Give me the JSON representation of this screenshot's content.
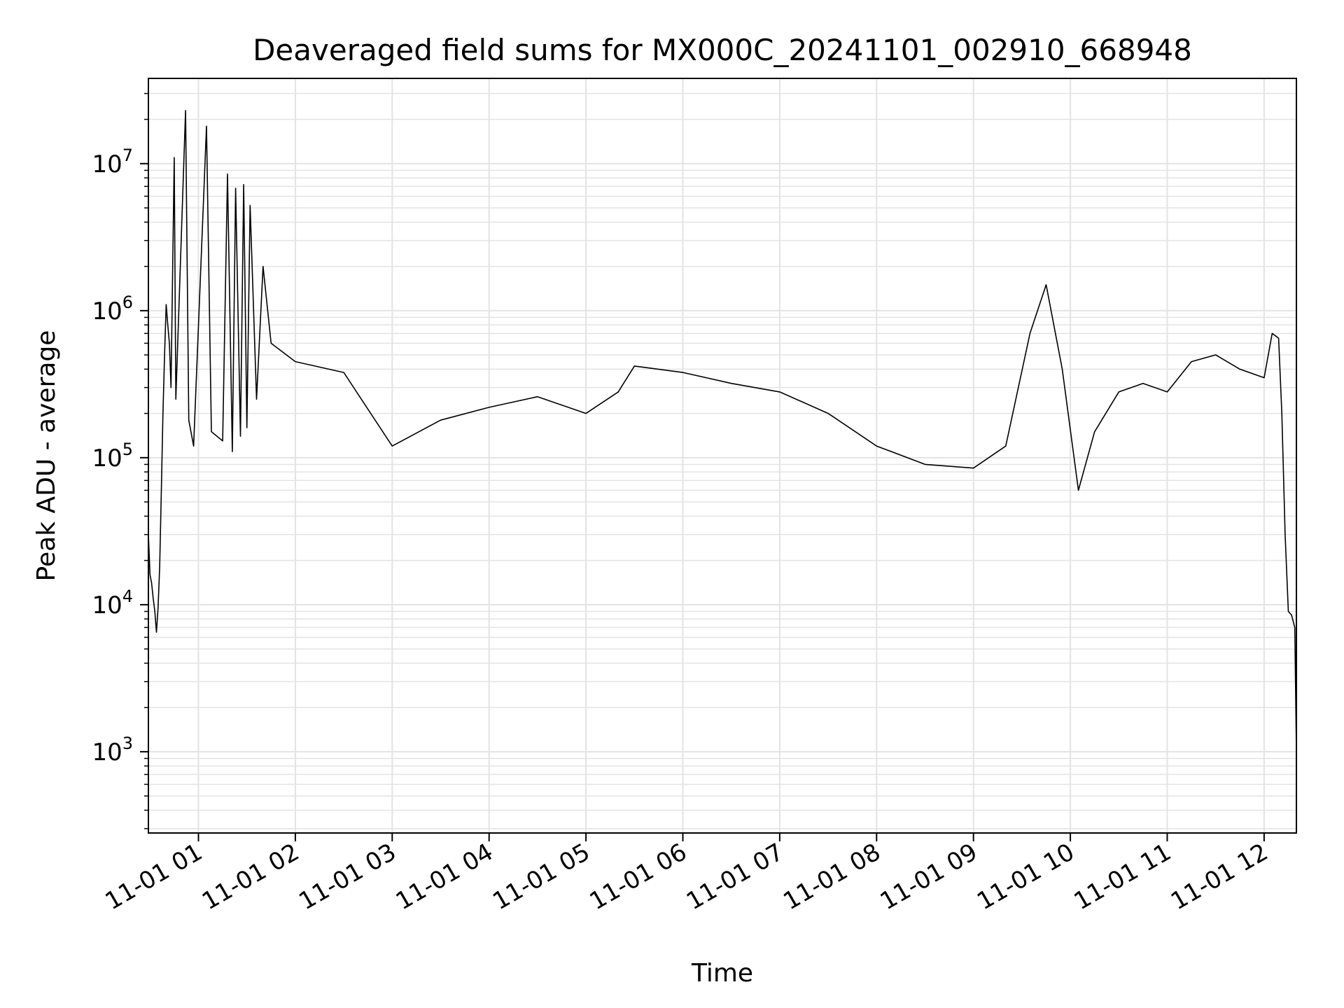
{
  "chart_data": {
    "type": "line",
    "title": "Deaveraged field sums for MX000C_20241101_002910_668948",
    "xlabel": "Time",
    "ylabel": "Peak ADU - average",
    "yscale": "log",
    "ylim": [
      280,
      38000000
    ],
    "xlim": [
      "2024-11-01 00:29",
      "2024-11-01 12:20"
    ],
    "grid": true,
    "line_color": "#000000",
    "grid_color": "#e3e3e3",
    "x_ticks": [
      {
        "value": "2024-11-01 01:00",
        "label": "11-01 01"
      },
      {
        "value": "2024-11-01 02:00",
        "label": "11-01 02"
      },
      {
        "value": "2024-11-01 03:00",
        "label": "11-01 03"
      },
      {
        "value": "2024-11-01 04:00",
        "label": "11-01 04"
      },
      {
        "value": "2024-11-01 05:00",
        "label": "11-01 05"
      },
      {
        "value": "2024-11-01 06:00",
        "label": "11-01 06"
      },
      {
        "value": "2024-11-01 07:00",
        "label": "11-01 07"
      },
      {
        "value": "2024-11-01 08:00",
        "label": "11-01 08"
      },
      {
        "value": "2024-11-01 09:00",
        "label": "11-01 09"
      },
      {
        "value": "2024-11-01 10:00",
        "label": "11-01 10"
      },
      {
        "value": "2024-11-01 11:00",
        "label": "11-01 11"
      },
      {
        "value": "2024-11-01 12:00",
        "label": "11-01 12"
      }
    ],
    "y_ticks": [
      {
        "value": 1000,
        "base": "10",
        "exp": "3"
      },
      {
        "value": 10000,
        "base": "10",
        "exp": "4"
      },
      {
        "value": 100000,
        "base": "10",
        "exp": "5"
      },
      {
        "value": 1000000,
        "base": "10",
        "exp": "6"
      },
      {
        "value": 10000000,
        "base": "10",
        "exp": "7"
      }
    ],
    "series": [
      {
        "points": [
          [
            "2024-11-01 00:29",
            30000
          ],
          [
            "2024-11-01 00:30",
            16000
          ],
          [
            "2024-11-01 00:31",
            14000
          ],
          [
            "2024-11-01 00:32",
            11000
          ],
          [
            "2024-11-01 00:33",
            9000
          ],
          [
            "2024-11-01 00:34",
            6500
          ],
          [
            "2024-11-01 00:35",
            9500
          ],
          [
            "2024-11-01 00:36",
            18000
          ],
          [
            "2024-11-01 00:37",
            60000
          ],
          [
            "2024-11-01 00:38",
            200000
          ],
          [
            "2024-11-01 00:39",
            500000
          ],
          [
            "2024-11-01 00:40",
            1100000
          ],
          [
            "2024-11-01 00:41",
            800000
          ],
          [
            "2024-11-01 00:42",
            600000
          ],
          [
            "2024-11-01 00:43",
            300000
          ],
          [
            "2024-11-01 00:45",
            11000000
          ],
          [
            "2024-11-01 00:46",
            250000
          ],
          [
            "2024-11-01 00:52",
            23000000
          ],
          [
            "2024-11-01 00:54",
            180000
          ],
          [
            "2024-11-01 00:57",
            120000
          ],
          [
            "2024-11-01 01:05",
            18000000
          ],
          [
            "2024-11-01 01:08",
            150000
          ],
          [
            "2024-11-01 01:15",
            130000
          ],
          [
            "2024-11-01 01:18",
            8500000
          ],
          [
            "2024-11-01 01:21",
            110000
          ],
          [
            "2024-11-01 01:23",
            6800000
          ],
          [
            "2024-11-01 01:26",
            140000
          ],
          [
            "2024-11-01 01:28",
            7200000
          ],
          [
            "2024-11-01 01:30",
            160000
          ],
          [
            "2024-11-01 01:32",
            5200000
          ],
          [
            "2024-11-01 01:36",
            250000
          ],
          [
            "2024-11-01 01:40",
            2000000
          ],
          [
            "2024-11-01 01:45",
            600000
          ],
          [
            "2024-11-01 02:00",
            450000
          ],
          [
            "2024-11-01 02:30",
            380000
          ],
          [
            "2024-11-01 03:00",
            120000
          ],
          [
            "2024-11-01 03:30",
            180000
          ],
          [
            "2024-11-01 04:00",
            220000
          ],
          [
            "2024-11-01 04:30",
            260000
          ],
          [
            "2024-11-01 05:00",
            200000
          ],
          [
            "2024-11-01 05:20",
            280000
          ],
          [
            "2024-11-01 05:30",
            420000
          ],
          [
            "2024-11-01 06:00",
            380000
          ],
          [
            "2024-11-01 06:30",
            320000
          ],
          [
            "2024-11-01 07:00",
            280000
          ],
          [
            "2024-11-01 07:30",
            200000
          ],
          [
            "2024-11-01 08:00",
            120000
          ],
          [
            "2024-11-01 08:30",
            90000
          ],
          [
            "2024-11-01 09:00",
            85000
          ],
          [
            "2024-11-01 09:20",
            120000
          ],
          [
            "2024-11-01 09:35",
            700000
          ],
          [
            "2024-11-01 09:45",
            1500000
          ],
          [
            "2024-11-01 09:55",
            400000
          ],
          [
            "2024-11-01 10:05",
            60000
          ],
          [
            "2024-11-01 10:15",
            150000
          ],
          [
            "2024-11-01 10:30",
            280000
          ],
          [
            "2024-11-01 10:45",
            320000
          ],
          [
            "2024-11-01 11:00",
            280000
          ],
          [
            "2024-11-01 11:15",
            450000
          ],
          [
            "2024-11-01 11:30",
            500000
          ],
          [
            "2024-11-01 11:45",
            400000
          ],
          [
            "2024-11-01 12:00",
            350000
          ],
          [
            "2024-11-01 12:05",
            700000
          ],
          [
            "2024-11-01 12:09",
            650000
          ],
          [
            "2024-11-01 12:11",
            200000
          ],
          [
            "2024-11-01 12:13",
            30000
          ],
          [
            "2024-11-01 12:15",
            9000
          ],
          [
            "2024-11-01 12:17",
            8500
          ],
          [
            "2024-11-01 12:19",
            7000
          ],
          [
            "2024-11-01 12:20",
            1000
          ]
        ]
      }
    ]
  }
}
